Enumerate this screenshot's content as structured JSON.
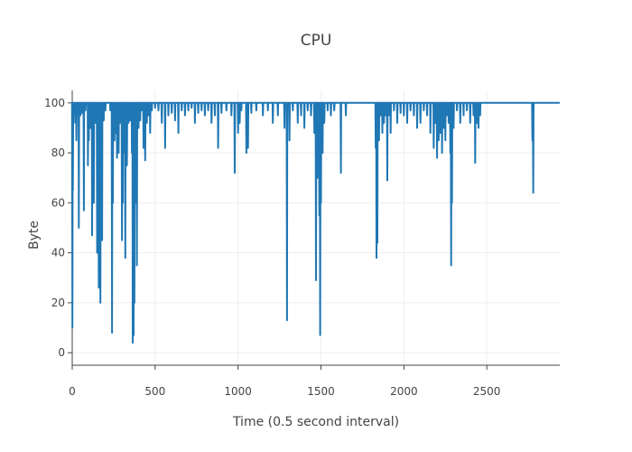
{
  "chart_data": {
    "type": "line",
    "title": "CPU",
    "xlabel": "Time (0.5 second interval)",
    "ylabel": "Byte",
    "xlim": [
      0,
      2940
    ],
    "ylim": [
      -5,
      105
    ],
    "xticks": [
      0,
      500,
      1000,
      1500,
      2000,
      2500
    ],
    "yticks": [
      0,
      20,
      40,
      60,
      80,
      100
    ],
    "grid": true,
    "legend": "none",
    "baseline": 100,
    "series": [
      {
        "color": "#1f77b4",
        "dips": [
          [
            1,
            10
          ],
          [
            4,
            65
          ],
          [
            18,
            92
          ],
          [
            25,
            85
          ],
          [
            30,
            95
          ],
          [
            40,
            50
          ],
          [
            50,
            95
          ],
          [
            60,
            96
          ],
          [
            70,
            57
          ],
          [
            80,
            97
          ],
          [
            95,
            75
          ],
          [
            100,
            85
          ],
          [
            110,
            90
          ],
          [
            120,
            47
          ],
          [
            130,
            60
          ],
          [
            140,
            92
          ],
          [
            150,
            40
          ],
          [
            155,
            45
          ],
          [
            160,
            26
          ],
          [
            165,
            44
          ],
          [
            170,
            20
          ],
          [
            175,
            55
          ],
          [
            180,
            45
          ],
          [
            190,
            93
          ],
          [
            200,
            97
          ],
          [
            230,
            97
          ],
          [
            240,
            8
          ],
          [
            245,
            60
          ],
          [
            255,
            85
          ],
          [
            260,
            88
          ],
          [
            270,
            78
          ],
          [
            275,
            90
          ],
          [
            280,
            80
          ],
          [
            285,
            93
          ],
          [
            290,
            92
          ],
          [
            300,
            45
          ],
          [
            305,
            60
          ],
          [
            315,
            80
          ],
          [
            320,
            38
          ],
          [
            330,
            75
          ],
          [
            340,
            92
          ],
          [
            350,
            93
          ],
          [
            360,
            80
          ],
          [
            365,
            4
          ],
          [
            370,
            7
          ],
          [
            375,
            20
          ],
          [
            385,
            60
          ],
          [
            390,
            35
          ],
          [
            400,
            90
          ],
          [
            410,
            93
          ],
          [
            420,
            97
          ],
          [
            430,
            82
          ],
          [
            440,
            77
          ],
          [
            450,
            92
          ],
          [
            460,
            95
          ],
          [
            470,
            88
          ],
          [
            480,
            97
          ],
          [
            500,
            98
          ],
          [
            520,
            97
          ],
          [
            540,
            92
          ],
          [
            560,
            82
          ],
          [
            580,
            95
          ],
          [
            600,
            96
          ],
          [
            620,
            93
          ],
          [
            640,
            88
          ],
          [
            660,
            97
          ],
          [
            680,
            95
          ],
          [
            700,
            97
          ],
          [
            720,
            98
          ],
          [
            740,
            92
          ],
          [
            760,
            96
          ],
          [
            780,
            97
          ],
          [
            800,
            95
          ],
          [
            820,
            97
          ],
          [
            840,
            92
          ],
          [
            860,
            95
          ],
          [
            880,
            82
          ],
          [
            900,
            96
          ],
          [
            930,
            97
          ],
          [
            960,
            95
          ],
          [
            980,
            72
          ],
          [
            1000,
            88
          ],
          [
            1010,
            92
          ],
          [
            1020,
            97
          ],
          [
            1050,
            80
          ],
          [
            1060,
            82
          ],
          [
            1080,
            96
          ],
          [
            1110,
            97
          ],
          [
            1150,
            95
          ],
          [
            1180,
            97
          ],
          [
            1210,
            92
          ],
          [
            1240,
            95
          ],
          [
            1280,
            90
          ],
          [
            1295,
            13
          ],
          [
            1310,
            85
          ],
          [
            1330,
            97
          ],
          [
            1360,
            92
          ],
          [
            1380,
            95
          ],
          [
            1400,
            90
          ],
          [
            1420,
            97
          ],
          [
            1440,
            95
          ],
          [
            1460,
            88
          ],
          [
            1470,
            29
          ],
          [
            1480,
            70
          ],
          [
            1490,
            55
          ],
          [
            1495,
            7
          ],
          [
            1500,
            60
          ],
          [
            1510,
            80
          ],
          [
            1520,
            92
          ],
          [
            1540,
            97
          ],
          [
            1560,
            95
          ],
          [
            1580,
            97
          ],
          [
            1620,
            72
          ],
          [
            1650,
            95
          ],
          [
            1830,
            82
          ],
          [
            1835,
            38
          ],
          [
            1840,
            44
          ],
          [
            1850,
            85
          ],
          [
            1860,
            95
          ],
          [
            1870,
            88
          ],
          [
            1880,
            92
          ],
          [
            1890,
            95
          ],
          [
            1900,
            69
          ],
          [
            1910,
            95
          ],
          [
            1920,
            88
          ],
          [
            1940,
            97
          ],
          [
            1960,
            92
          ],
          [
            1980,
            96
          ],
          [
            2000,
            95
          ],
          [
            2020,
            92
          ],
          [
            2040,
            97
          ],
          [
            2060,
            95
          ],
          [
            2080,
            90
          ],
          [
            2100,
            92
          ],
          [
            2120,
            97
          ],
          [
            2140,
            95
          ],
          [
            2160,
            88
          ],
          [
            2180,
            82
          ],
          [
            2190,
            92
          ],
          [
            2200,
            78
          ],
          [
            2210,
            85
          ],
          [
            2220,
            88
          ],
          [
            2230,
            80
          ],
          [
            2240,
            90
          ],
          [
            2250,
            85
          ],
          [
            2260,
            95
          ],
          [
            2270,
            92
          ],
          [
            2280,
            80
          ],
          [
            2285,
            35
          ],
          [
            2290,
            60
          ],
          [
            2300,
            90
          ],
          [
            2320,
            97
          ],
          [
            2340,
            92
          ],
          [
            2360,
            95
          ],
          [
            2380,
            97
          ],
          [
            2400,
            92
          ],
          [
            2420,
            95
          ],
          [
            2430,
            76
          ],
          [
            2440,
            92
          ],
          [
            2450,
            90
          ],
          [
            2460,
            95
          ],
          [
            2775,
            85
          ],
          [
            2780,
            64
          ]
        ]
      }
    ]
  }
}
